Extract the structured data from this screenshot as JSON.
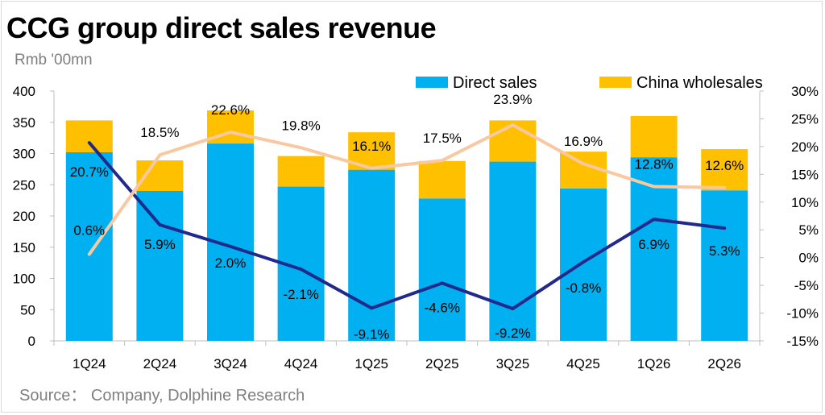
{
  "title": "CCG group direct sales revenue",
  "unit": "Rmb '00mn",
  "source": "Source：  Company, Dolphine Research",
  "colors": {
    "direct_sales": "#00b0f0",
    "china_wholesales": "#ffc000",
    "line_dark": "#1f2a8c",
    "line_light": "#f8c8a0"
  },
  "chart_data": {
    "type": "bar",
    "stacked": true,
    "categories": [
      "1Q24",
      "2Q24",
      "3Q24",
      "4Q24",
      "1Q25",
      "2Q25",
      "3Q25",
      "4Q25",
      "1Q26",
      "2Q26"
    ],
    "series": [
      {
        "name": "Direct sales",
        "axis": "left",
        "values": [
          302,
          240,
          316,
          247,
          274,
          228,
          287,
          244,
          294,
          241
        ]
      },
      {
        "name": "China wholesales",
        "axis": "left",
        "values": [
          51,
          49,
          53,
          49,
          60,
          60,
          66,
          59,
          66,
          66
        ]
      }
    ],
    "lines": [
      {
        "axis": "right",
        "color": "line_dark",
        "values": [
          20.7,
          5.9,
          2.0,
          -2.1,
          -9.1,
          -4.6,
          -9.2,
          -0.8,
          6.9,
          5.3
        ],
        "labels": [
          "20.7%",
          "5.9%",
          "2.0%",
          "-2.1%",
          "-9.1%",
          "-4.6%",
          "-9.2%",
          "-0.8%",
          "6.9%",
          "5.3%"
        ]
      },
      {
        "axis": "right",
        "color": "line_light",
        "values": [
          0.6,
          18.5,
          22.6,
          19.8,
          16.1,
          17.5,
          23.9,
          16.9,
          12.8,
          12.6
        ],
        "labels": [
          "0.6%",
          "18.5%",
          "22.6%",
          "19.8%",
          "16.1%",
          "17.5%",
          "23.9%",
          "16.9%",
          "12.8%",
          "12.6%"
        ]
      }
    ],
    "y_left": {
      "min": 0,
      "max": 400,
      "step": 50,
      "ticks": [
        "0",
        "50",
        "100",
        "150",
        "200",
        "250",
        "300",
        "350",
        "400"
      ]
    },
    "y_right": {
      "min": -15,
      "max": 30,
      "step": 5,
      "ticks": [
        "-15%",
        "-10%",
        "-5%",
        "0%",
        "5%",
        "10%",
        "15%",
        "20%",
        "25%",
        "30%"
      ]
    },
    "legend_position": "top-right",
    "grid": false
  }
}
